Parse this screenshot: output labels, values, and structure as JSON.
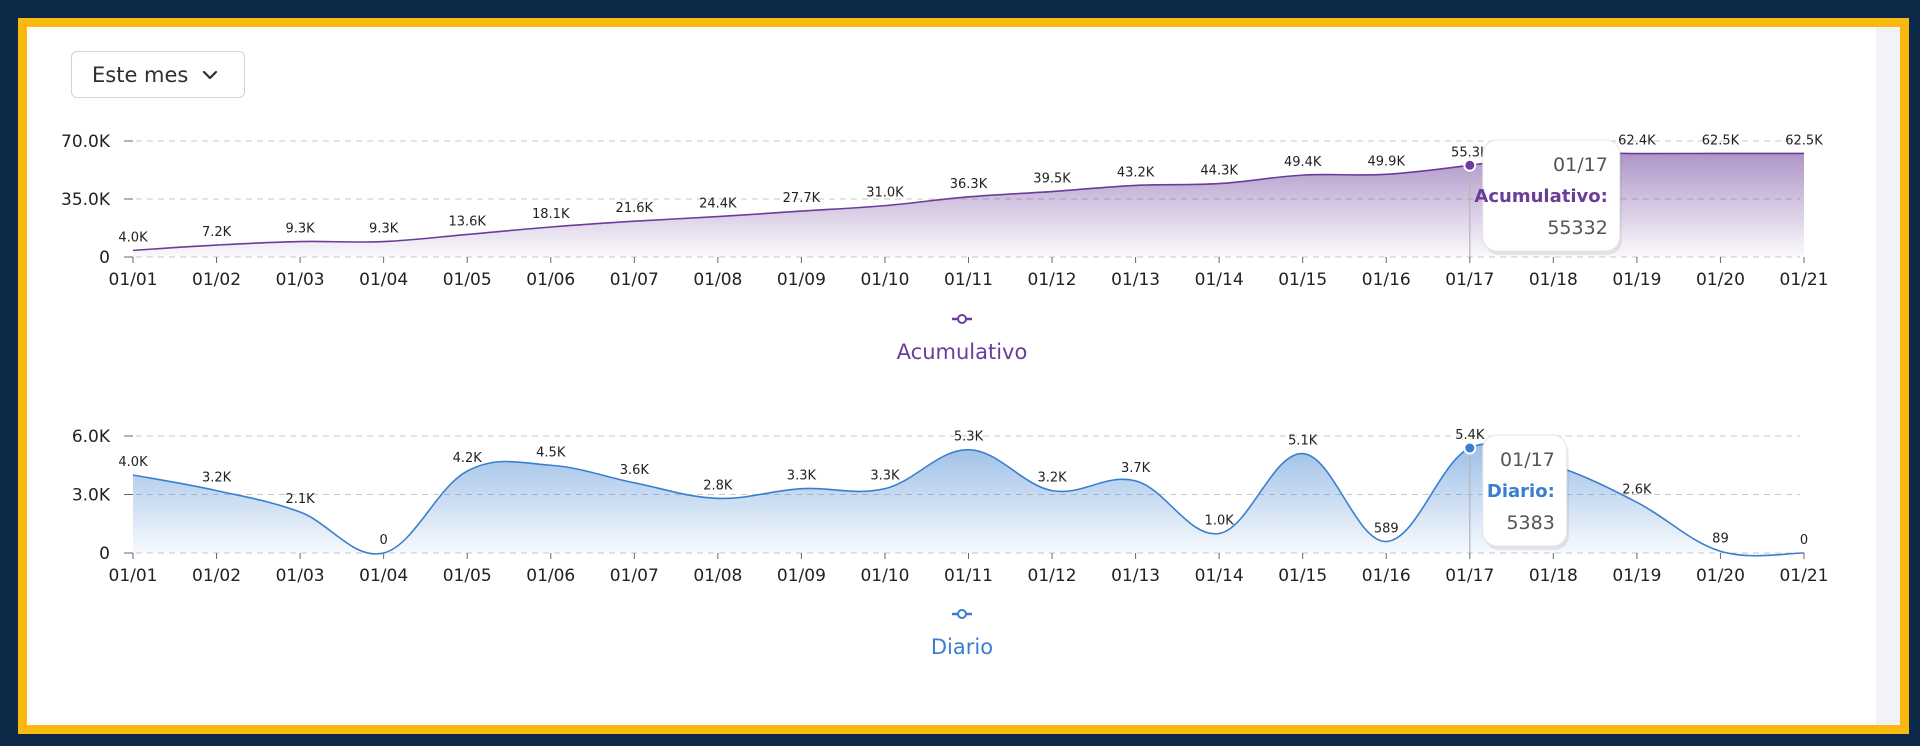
{
  "filter": {
    "label": "Este mes",
    "icon": "chevron-down-icon"
  },
  "chart_data": [
    {
      "type": "area",
      "series_name": "Acumulativo",
      "color": "#6b3d9a",
      "categories": [
        "01/01",
        "01/02",
        "01/03",
        "01/04",
        "01/05",
        "01/06",
        "01/07",
        "01/08",
        "01/09",
        "01/10",
        "01/11",
        "01/12",
        "01/13",
        "01/14",
        "01/15",
        "01/16",
        "01/17",
        "01/18",
        "01/19",
        "01/20",
        "01/21"
      ],
      "values": [
        4000,
        7200,
        9300,
        9300,
        13600,
        18100,
        21600,
        24400,
        27700,
        31000,
        36300,
        39500,
        43200,
        44300,
        49400,
        49900,
        55332,
        62400,
        62400,
        62500,
        62500
      ],
      "data_labels": [
        "4.0K",
        "7.2K",
        "9.3K",
        "9.3K",
        "13.6K",
        "18.1K",
        "21.6K",
        "24.4K",
        "27.7K",
        "31.0K",
        "36.3K",
        "39.5K",
        "43.2K",
        "44.3K",
        "49.4K",
        "49.9K",
        "55.3K",
        "",
        "62.4K",
        "62.5K",
        "62.5K"
      ],
      "y_ticks": [
        {
          "value": 0,
          "label": "0"
        },
        {
          "value": 35000,
          "label": "35.0K"
        },
        {
          "value": 70000,
          "label": "70.0K"
        }
      ],
      "ylim": [
        0,
        70000
      ],
      "grid": true,
      "legend_position": "bottom",
      "tooltip": {
        "date": "01/17",
        "series": "Acumulativo:",
        "value": "55332",
        "index": 16
      }
    },
    {
      "type": "area",
      "series_name": "Diario",
      "color": "#3a7fcf",
      "categories": [
        "01/01",
        "01/02",
        "01/03",
        "01/04",
        "01/05",
        "01/06",
        "01/07",
        "01/08",
        "01/09",
        "01/10",
        "01/11",
        "01/12",
        "01/13",
        "01/14",
        "01/15",
        "01/16",
        "01/17",
        "01/18",
        "01/19",
        "01/20",
        "01/21"
      ],
      "values": [
        4000,
        3200,
        2100,
        0,
        4200,
        4500,
        3600,
        2800,
        3300,
        3300,
        5300,
        3200,
        3700,
        1000,
        5100,
        589,
        5383,
        4500,
        2600,
        89,
        0
      ],
      "data_labels": [
        "4.0K",
        "3.2K",
        "2.1K",
        "0",
        "4.2K",
        "4.5K",
        "3.6K",
        "2.8K",
        "3.3K",
        "3.3K",
        "5.3K",
        "3.2K",
        "3.7K",
        "1.0K",
        "5.1K",
        "589",
        "5.4K",
        "",
        "2.6K",
        "89",
        "0"
      ],
      "y_ticks": [
        {
          "value": 0,
          "label": "0"
        },
        {
          "value": 3000,
          "label": "3.0K"
        },
        {
          "value": 6000,
          "label": "6.0K"
        }
      ],
      "ylim": [
        0,
        6000
      ],
      "grid": true,
      "legend_position": "bottom",
      "tooltip": {
        "date": "01/17",
        "series": "Diario:",
        "value": "5383",
        "index": 16
      }
    }
  ]
}
